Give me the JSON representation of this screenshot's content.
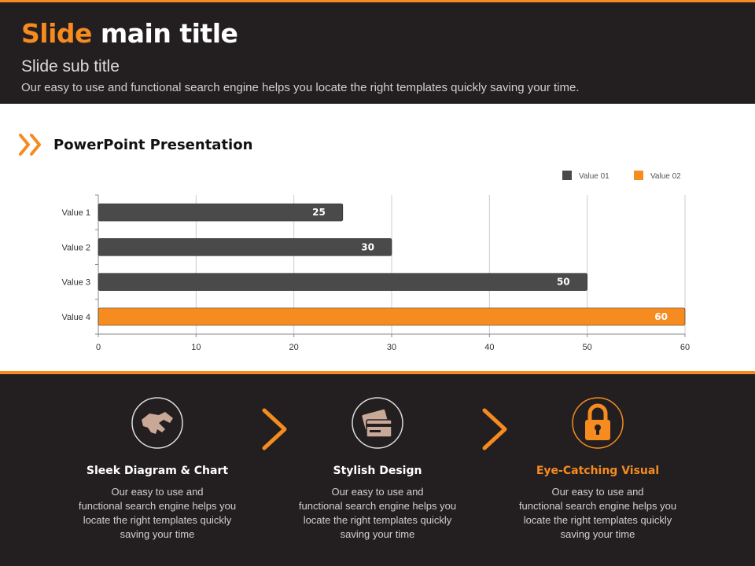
{
  "header": {
    "title_accent": "Slide",
    "title_rest": " main title",
    "subtitle": "Slide sub title",
    "description": "Our easy to use and functional search engine helps you locate the right templates quickly saving your time."
  },
  "section": {
    "title": "PowerPoint Presentation"
  },
  "colors": {
    "accent": "#f68b1f",
    "dark": "#231f20",
    "bar_dark": "#4a4a4a"
  },
  "chart_data": {
    "type": "bar",
    "orientation": "horizontal",
    "categories": [
      "Value 1",
      "Value 2",
      "Value 3",
      "Value 4"
    ],
    "series": [
      {
        "name": "Value 01",
        "values": [
          25,
          30,
          50,
          null
        ],
        "color": "#4a4a4a"
      },
      {
        "name": "Value 02",
        "values": [
          null,
          null,
          null,
          60
        ],
        "color": "#f68b1f"
      }
    ],
    "data_labels": [
      "25",
      "30",
      "50",
      "60"
    ],
    "xlim": [
      0,
      60
    ],
    "xticks": [
      0,
      10,
      20,
      30,
      40,
      50,
      60
    ],
    "grid": true,
    "legend": "top-right"
  },
  "features": [
    {
      "title": "Sleek Diagram & Chart",
      "desc_lines": [
        "Our easy to use and",
        "functional search engine helps you",
        "locate the right templates quickly",
        "saving your time"
      ],
      "icon": "handshake-icon",
      "highlight": false
    },
    {
      "title": "Stylish Design",
      "desc_lines": [
        "Our easy to use and",
        "functional search engine helps you",
        "locate the right templates quickly",
        "saving your time"
      ],
      "icon": "credit-cards-icon",
      "highlight": false
    },
    {
      "title": "Eye-Catching Visual",
      "desc_lines": [
        "Our easy to use and",
        "functional search engine helps you",
        "locate the right templates quickly",
        "saving your time"
      ],
      "icon": "padlock-icon",
      "highlight": true
    }
  ]
}
